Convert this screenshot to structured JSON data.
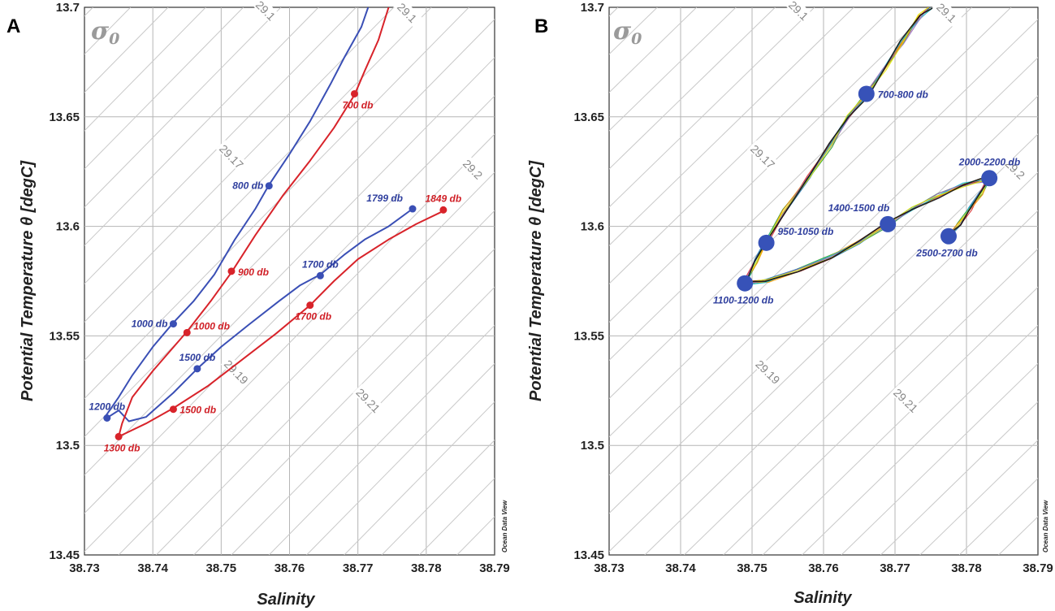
{
  "chart_data": [
    {
      "type": "line",
      "panel_label": "A",
      "sigma_label": "σ",
      "sigma_sub": "0",
      "xlabel": "Salinity",
      "ylabel": "Potential Temperature θ [degC]",
      "xlim": [
        38.73,
        38.79
      ],
      "ylim": [
        13.45,
        13.7
      ],
      "xticks": [
        "38.73",
        "38.74",
        "38.75",
        "38.76",
        "38.77",
        "38.78",
        "38.79"
      ],
      "yticks": [
        "13.45",
        "13.5",
        "13.55",
        "13.6",
        "13.65",
        "13.7"
      ],
      "watermark": "Ocean Data View",
      "isopycnals": [
        {
          "label": "29.17",
          "x": 38.7515,
          "y": 13.6318
        },
        {
          "label": "29.19",
          "x": 38.7522,
          "y": 13.5335
        },
        {
          "label": "29.21",
          "x": 38.7715,
          "y": 13.5205
        },
        {
          "label": "29.1",
          "x": 38.7565,
          "y": 13.6985
        },
        {
          "label": "29.1",
          "x": 38.7772,
          "y": 13.6975
        },
        {
          "label": "29.2",
          "x": 38.7868,
          "y": 13.626
        }
      ],
      "series": [
        {
          "name": "blue",
          "color": "#3a4fb5",
          "x": [
            38.733,
            38.735,
            38.737,
            38.74,
            38.743,
            38.746,
            38.749,
            38.752,
            38.755,
            38.757,
            38.76,
            38.763,
            38.766,
            38.768,
            38.7705,
            38.7715
          ],
          "y": [
            13.513,
            13.522,
            13.532,
            13.545,
            13.556,
            13.566,
            13.578,
            13.594,
            13.608,
            13.619,
            13.633,
            13.648,
            13.665,
            13.677,
            13.691,
            13.7
          ]
        },
        {
          "name": "blue-deep",
          "color": "#3a4fb5",
          "x": [
            38.7335,
            38.735,
            38.7365,
            38.739,
            38.743,
            38.7465,
            38.75,
            38.754,
            38.7585,
            38.7615,
            38.7645,
            38.768,
            38.771,
            38.7745,
            38.778
          ],
          "y": [
            13.513,
            13.516,
            13.511,
            13.513,
            13.524,
            13.535,
            13.545,
            13.555,
            13.566,
            13.573,
            13.578,
            13.587,
            13.594,
            13.6,
            13.608
          ]
        },
        {
          "name": "red",
          "color": "#d8232a",
          "x": [
            38.735,
            38.7355,
            38.737,
            38.74,
            38.745,
            38.7485,
            38.7515,
            38.755,
            38.759,
            38.763,
            38.7665,
            38.7695,
            38.771,
            38.773,
            38.7745
          ],
          "y": [
            13.504,
            13.51,
            13.522,
            13.534,
            13.552,
            13.566,
            13.579,
            13.596,
            13.614,
            13.63,
            13.645,
            13.66,
            13.671,
            13.685,
            13.7
          ]
        },
        {
          "name": "red-deep",
          "color": "#d8232a",
          "x": [
            38.735,
            38.739,
            38.743,
            38.748,
            38.753,
            38.758,
            38.763,
            38.7665,
            38.77,
            38.7745,
            38.7785,
            38.7825
          ],
          "y": [
            13.504,
            13.51,
            13.517,
            13.527,
            13.539,
            13.551,
            13.564,
            13.575,
            13.585,
            13.594,
            13.601,
            13.607
          ]
        }
      ],
      "points": [
        {
          "label": "800 db",
          "x": 38.757,
          "y": 13.6185,
          "color": "blue",
          "side": "left"
        },
        {
          "label": "1000 db",
          "x": 38.743,
          "y": 13.5555,
          "color": "blue",
          "side": "left"
        },
        {
          "label": "1200 db",
          "x": 38.7333,
          "y": 13.5125,
          "color": "blue",
          "side": "above"
        },
        {
          "label": "1500 db",
          "x": 38.7465,
          "y": 13.535,
          "color": "blue",
          "side": "above"
        },
        {
          "label": "1700 db",
          "x": 38.7645,
          "y": 13.5775,
          "color": "blue",
          "side": "above"
        },
        {
          "label": "1799 db",
          "x": 38.778,
          "y": 13.608,
          "color": "blue",
          "side": "above-left"
        },
        {
          "label": "700 db",
          "x": 38.7695,
          "y": 13.6605,
          "color": "red",
          "side": "below"
        },
        {
          "label": "900 db",
          "x": 38.7515,
          "y": 13.5795,
          "color": "red",
          "side": "right"
        },
        {
          "label": "1000 db",
          "x": 38.745,
          "y": 13.5515,
          "color": "red",
          "side": "right-up"
        },
        {
          "label": "1300 db",
          "x": 38.735,
          "y": 13.504,
          "color": "red",
          "side": "below"
        },
        {
          "label": "1500 db",
          "x": 38.743,
          "y": 13.5165,
          "color": "red",
          "side": "right"
        },
        {
          "label": "1700 db",
          "x": 38.763,
          "y": 13.564,
          "color": "red",
          "side": "below"
        },
        {
          "label": "1849 db",
          "x": 38.7825,
          "y": 13.6075,
          "color": "red",
          "side": "above"
        }
      ]
    },
    {
      "type": "line",
      "panel_label": "B",
      "sigma_label": "σ",
      "sigma_sub": "0",
      "xlabel": "Salinity",
      "ylabel": "Potential Temperature θ [degC]",
      "xlim": [
        38.73,
        38.79
      ],
      "ylim": [
        13.45,
        13.7
      ],
      "xticks": [
        "38.73",
        "38.74",
        "38.75",
        "38.76",
        "38.77",
        "38.78",
        "38.79"
      ],
      "yticks": [
        "13.45",
        "13.5",
        "13.55",
        "13.6",
        "13.65",
        "13.7"
      ],
      "watermark": "Ocean Data View",
      "isopycnals": [
        {
          "label": "29.17",
          "x": 38.7515,
          "y": 13.6318
        },
        {
          "label": "29.19",
          "x": 38.7522,
          "y": 13.5335
        },
        {
          "label": "29.21",
          "x": 38.7715,
          "y": 13.5205
        },
        {
          "label": "29.1",
          "x": 38.7565,
          "y": 13.6985
        },
        {
          "label": "29.1",
          "x": 38.7772,
          "y": 13.6975
        },
        {
          "label": "29.2",
          "x": 38.7868,
          "y": 13.626
        }
      ],
      "profile_colors": [
        "#2ca02c",
        "#1f77b4",
        "#d62728",
        "#ff9900",
        "#17becf",
        "#9467bd",
        "#e8e800",
        "#111111"
      ],
      "series": [
        {
          "name": "upper-branch",
          "x": [
            38.749,
            38.7505,
            38.752,
            38.7545,
            38.758,
            38.761,
            38.7635,
            38.766,
            38.7685,
            38.771,
            38.7735,
            38.775
          ],
          "y": [
            13.574,
            13.584,
            13.593,
            13.607,
            13.623,
            13.637,
            13.65,
            13.66,
            13.672,
            13.684,
            13.696,
            13.7
          ]
        },
        {
          "name": "lower-branch",
          "x": [
            38.749,
            38.752,
            38.7565,
            38.761,
            38.765,
            38.769,
            38.7725,
            38.776,
            38.7795,
            38.7822,
            38.7832
          ],
          "y": [
            13.574,
            13.575,
            13.58,
            13.586,
            13.593,
            13.601,
            13.608,
            13.614,
            13.619,
            13.621,
            13.622
          ]
        },
        {
          "name": "tail",
          "x": [
            38.7832,
            38.782,
            38.7805,
            38.779,
            38.7775
          ],
          "y": [
            13.622,
            13.615,
            13.608,
            13.601,
            13.596
          ]
        }
      ],
      "points": [
        {
          "label": "700-800 db",
          "x": 38.766,
          "y": 13.6605,
          "side": "right"
        },
        {
          "label": "950-1050 db",
          "x": 38.752,
          "y": 13.5925,
          "side": "right-up"
        },
        {
          "label": "1100-1200 db",
          "x": 38.749,
          "y": 13.574,
          "side": "below"
        },
        {
          "label": "1400-1500 db",
          "x": 38.769,
          "y": 13.601,
          "side": "above-left"
        },
        {
          "label": "2000-2200 db",
          "x": 38.7832,
          "y": 13.622,
          "side": "above-left"
        },
        {
          "label": "2500-2700 db",
          "x": 38.7775,
          "y": 13.5955,
          "side": "below"
        }
      ]
    }
  ]
}
